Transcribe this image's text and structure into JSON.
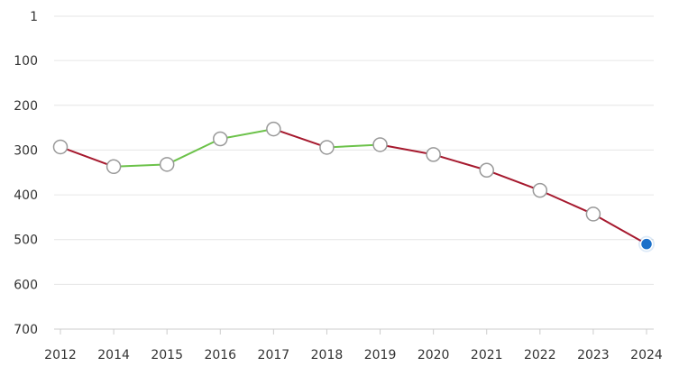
{
  "chart_data": {
    "type": "line",
    "x": [
      "2012",
      "2014",
      "2015",
      "2016",
      "2017",
      "2018",
      "2019",
      "2020",
      "2021",
      "2022",
      "2023",
      "2024"
    ],
    "values": [
      293,
      337,
      332,
      275,
      253,
      294,
      288,
      310,
      345,
      390,
      443,
      510
    ],
    "y_ticks": [
      "1",
      "100",
      "200",
      "300",
      "400",
      "500",
      "600",
      "700"
    ],
    "y_tick_values": [
      1,
      100,
      200,
      300,
      400,
      500,
      600,
      700
    ],
    "ylim": [
      1,
      700
    ],
    "y_inverted": true,
    "grid": true,
    "title": "",
    "xlabel": "",
    "ylabel": "",
    "colors": {
      "decline": "#a6192e",
      "improve": "#6cc24a",
      "marker_fill": "#ffffff",
      "marker_stroke": "#999999",
      "current_marker": "#1a6fc9",
      "grid": "#e6e6e6",
      "axis": "#cccccc"
    }
  }
}
